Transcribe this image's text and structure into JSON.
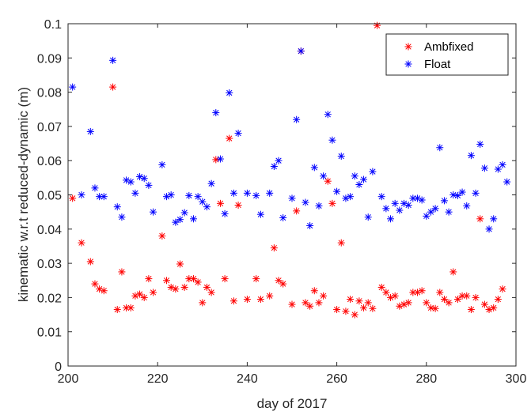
{
  "chart_data": {
    "type": "scatter",
    "title": "",
    "xlabel": "day of 2017",
    "ylabel": "kinematic w.r.t reduced-dynamic (m)",
    "xlim": [
      200,
      300
    ],
    "ylim": [
      0,
      0.1
    ],
    "xticks": [
      200,
      220,
      240,
      260,
      280,
      300
    ],
    "yticks": [
      0,
      0.01,
      0.02,
      0.03,
      0.04,
      0.05,
      0.06,
      0.07,
      0.08,
      0.09,
      0.1
    ],
    "xtick_labels": [
      "200",
      "220",
      "240",
      "260",
      "280",
      "300"
    ],
    "ytick_labels": [
      "0",
      "0.01",
      "0.02",
      "0.03",
      "0.04",
      "0.05",
      "0.06",
      "0.07",
      "0.08",
      "0.09",
      "0.1"
    ],
    "grid": false,
    "legend_position": "top-right",
    "marker": "*",
    "series": [
      {
        "name": "Ambfixed",
        "color": "#ff0000",
        "points": [
          [
            201,
            0.049
          ],
          [
            203,
            0.036
          ],
          [
            205,
            0.0305
          ],
          [
            206,
            0.024
          ],
          [
            207,
            0.0225
          ],
          [
            208,
            0.022
          ],
          [
            210,
            0.0815
          ],
          [
            211,
            0.0165
          ],
          [
            212,
            0.0275
          ],
          [
            213,
            0.017
          ],
          [
            214,
            0.017
          ],
          [
            215,
            0.0205
          ],
          [
            216,
            0.021
          ],
          [
            217,
            0.02
          ],
          [
            218,
            0.0255
          ],
          [
            219,
            0.0215
          ],
          [
            221,
            0.038
          ],
          [
            222,
            0.025
          ],
          [
            223,
            0.023
          ],
          [
            224,
            0.0225
          ],
          [
            225,
            0.0298
          ],
          [
            226,
            0.023
          ],
          [
            227,
            0.0255
          ],
          [
            228,
            0.0255
          ],
          [
            229,
            0.0245
          ],
          [
            230,
            0.0185
          ],
          [
            231,
            0.023
          ],
          [
            232,
            0.0215
          ],
          [
            233,
            0.0603
          ],
          [
            234,
            0.0475
          ],
          [
            235,
            0.0255
          ],
          [
            236,
            0.0665
          ],
          [
            237,
            0.019
          ],
          [
            238,
            0.047
          ],
          [
            240,
            0.0195
          ],
          [
            242,
            0.0255
          ],
          [
            243,
            0.0195
          ],
          [
            245,
            0.0205
          ],
          [
            246,
            0.0345
          ],
          [
            247,
            0.025
          ],
          [
            248,
            0.024
          ],
          [
            250,
            0.018
          ],
          [
            251,
            0.0453
          ],
          [
            252,
            0.092
          ],
          [
            253,
            0.0185
          ],
          [
            254,
            0.0175
          ],
          [
            255,
            0.022
          ],
          [
            256,
            0.0185
          ],
          [
            257,
            0.0205
          ],
          [
            258,
            0.054
          ],
          [
            259,
            0.0475
          ],
          [
            260,
            0.0165
          ],
          [
            261,
            0.036
          ],
          [
            262,
            0.016
          ],
          [
            263,
            0.0195
          ],
          [
            264,
            0.015
          ],
          [
            265,
            0.019
          ],
          [
            266,
            0.017
          ],
          [
            267,
            0.0185
          ],
          [
            268,
            0.0168
          ],
          [
            269,
            0.0995
          ],
          [
            270,
            0.023
          ],
          [
            271,
            0.0215
          ],
          [
            272,
            0.02
          ],
          [
            273,
            0.0205
          ],
          [
            274,
            0.0175
          ],
          [
            275,
            0.018
          ],
          [
            276,
            0.0185
          ],
          [
            277,
            0.0215
          ],
          [
            278,
            0.0215
          ],
          [
            279,
            0.022
          ],
          [
            280,
            0.0185
          ],
          [
            281,
            0.017
          ],
          [
            282,
            0.0168
          ],
          [
            283,
            0.0215
          ],
          [
            284,
            0.0195
          ],
          [
            285,
            0.0185
          ],
          [
            286,
            0.0275
          ],
          [
            287,
            0.0195
          ],
          [
            288,
            0.0205
          ],
          [
            289,
            0.0205
          ],
          [
            290,
            0.0165
          ],
          [
            291,
            0.02
          ],
          [
            292,
            0.043
          ],
          [
            293,
            0.018
          ],
          [
            294,
            0.0165
          ],
          [
            295,
            0.017
          ],
          [
            296,
            0.0195
          ],
          [
            297,
            0.0225
          ]
        ]
      },
      {
        "name": "Float",
        "color": "#0000ff",
        "points": [
          [
            201,
            0.0815
          ],
          [
            203,
            0.05
          ],
          [
            205,
            0.0685
          ],
          [
            206,
            0.052
          ],
          [
            207,
            0.0495
          ],
          [
            208,
            0.0495
          ],
          [
            210,
            0.0893
          ],
          [
            211,
            0.0465
          ],
          [
            212,
            0.0435
          ],
          [
            213,
            0.0543
          ],
          [
            214,
            0.0538
          ],
          [
            215,
            0.0505
          ],
          [
            216,
            0.0553
          ],
          [
            217,
            0.0548
          ],
          [
            218,
            0.0528
          ],
          [
            219,
            0.045
          ],
          [
            221,
            0.0588
          ],
          [
            222,
            0.0495
          ],
          [
            223,
            0.05
          ],
          [
            224,
            0.042
          ],
          [
            225,
            0.0428
          ],
          [
            226,
            0.0448
          ],
          [
            227,
            0.0498
          ],
          [
            228,
            0.043
          ],
          [
            229,
            0.0495
          ],
          [
            230,
            0.048
          ],
          [
            231,
            0.0465
          ],
          [
            232,
            0.0533
          ],
          [
            233,
            0.074
          ],
          [
            234,
            0.0605
          ],
          [
            235,
            0.0445
          ],
          [
            236,
            0.0798
          ],
          [
            237,
            0.0505
          ],
          [
            238,
            0.068
          ],
          [
            240,
            0.0505
          ],
          [
            242,
            0.0498
          ],
          [
            243,
            0.0443
          ],
          [
            245,
            0.0505
          ],
          [
            246,
            0.0583
          ],
          [
            247,
            0.06
          ],
          [
            248,
            0.0433
          ],
          [
            250,
            0.049
          ],
          [
            251,
            0.072
          ],
          [
            252,
            0.092
          ],
          [
            253,
            0.0478
          ],
          [
            254,
            0.041
          ],
          [
            255,
            0.058
          ],
          [
            256,
            0.0468
          ],
          [
            257,
            0.0555
          ],
          [
            258,
            0.0735
          ],
          [
            259,
            0.066
          ],
          [
            260,
            0.051
          ],
          [
            261,
            0.0613
          ],
          [
            262,
            0.049
          ],
          [
            263,
            0.0495
          ],
          [
            264,
            0.0555
          ],
          [
            265,
            0.053
          ],
          [
            266,
            0.0545
          ],
          [
            267,
            0.0435
          ],
          [
            268,
            0.0568
          ],
          [
            270,
            0.0495
          ],
          [
            271,
            0.046
          ],
          [
            272,
            0.043
          ],
          [
            273,
            0.0475
          ],
          [
            274,
            0.0455
          ],
          [
            275,
            0.0475
          ],
          [
            276,
            0.047
          ],
          [
            277,
            0.049
          ],
          [
            278,
            0.049
          ],
          [
            279,
            0.0485
          ],
          [
            280,
            0.0438
          ],
          [
            281,
            0.045
          ],
          [
            282,
            0.046
          ],
          [
            283,
            0.0638
          ],
          [
            284,
            0.0483
          ],
          [
            285,
            0.045
          ],
          [
            286,
            0.05
          ],
          [
            287,
            0.0498
          ],
          [
            288,
            0.0508
          ],
          [
            289,
            0.0468
          ],
          [
            290,
            0.0615
          ],
          [
            291,
            0.0505
          ],
          [
            292,
            0.0648
          ],
          [
            293,
            0.0578
          ],
          [
            294,
            0.04
          ],
          [
            295,
            0.043
          ],
          [
            296,
            0.0575
          ],
          [
            297,
            0.0588
          ],
          [
            298,
            0.0538
          ]
        ]
      }
    ]
  }
}
